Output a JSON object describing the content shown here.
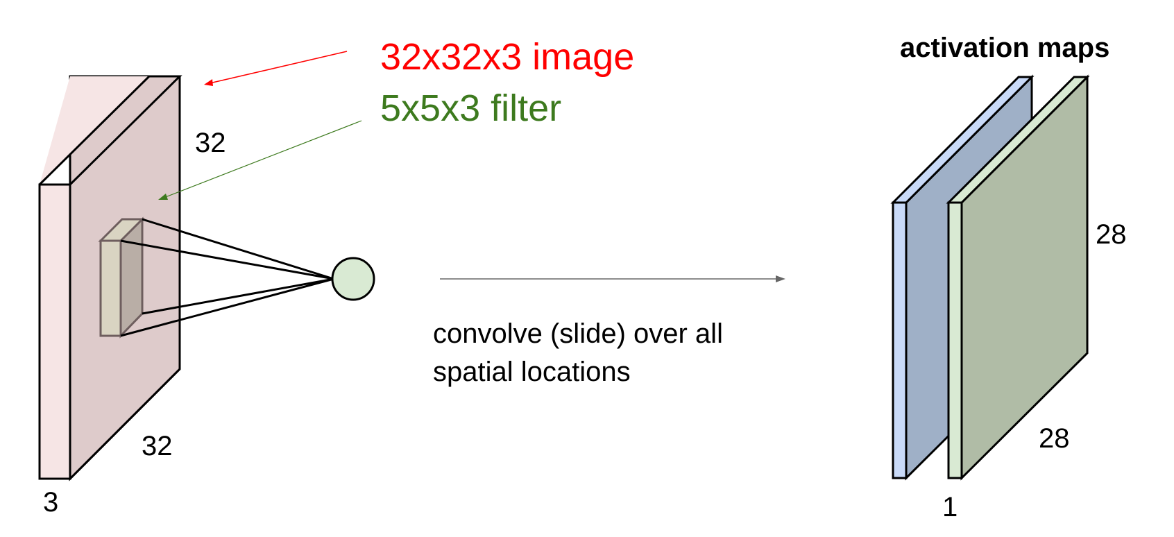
{
  "labels": {
    "image_label": "32x32x3 image",
    "filter_label": "5x5x3 filter",
    "activation_title": "activation maps",
    "input_height": "32",
    "input_width": "32",
    "input_depth": "3",
    "convolve_line1": "convolve (slide) over all",
    "convolve_line2": "spatial locations",
    "map_height": "28",
    "map_width": "28",
    "map_depth": "1"
  },
  "colors": {
    "image_label": "#ff0000",
    "filter_label": "#3d7a1e",
    "input_face": "#decbcb",
    "input_side": "#f6e5e5",
    "filter_face": "#b9aea6",
    "filter_side": "#d9d4c2",
    "neuron": "#d9ead3",
    "map1_face": "#9fb0c7",
    "map1_side": "#c9daf8",
    "map2_face": "#b0bca6",
    "map2_side": "#d9ead3",
    "arrow_gray": "#666666"
  }
}
